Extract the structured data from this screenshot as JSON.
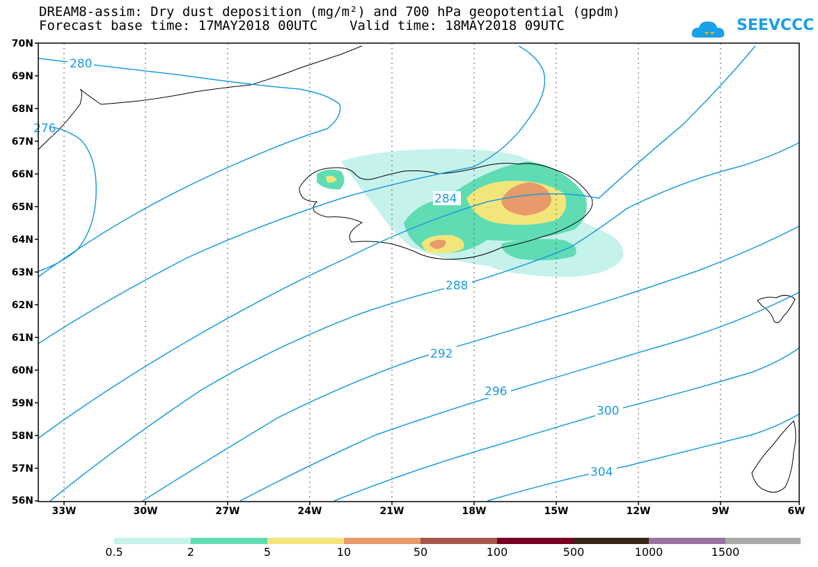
{
  "title_line1": "DREAM8-assim: Dry dust deposition (mg/m²) and 700 hPa geopotential (gpdm)",
  "title_line2": "Forecast base time: 17MAY2018 00UTC    Valid time: 18MAY2018 09UTC",
  "logo_text": "SEEVCCC",
  "lat_labels": [
    "70N",
    "69N",
    "68N",
    "67N",
    "66N",
    "65N",
    "64N",
    "63N",
    "62N",
    "61N",
    "60N",
    "59N",
    "58N",
    "57N",
    "56N"
  ],
  "lon_labels": [
    "33W",
    "30W",
    "27W",
    "24W",
    "21W",
    "18W",
    "15W",
    "12W",
    "9W",
    "6W"
  ],
  "contour_labels": [
    "280",
    "276",
    "284",
    "288",
    "292",
    "296",
    "300",
    "304"
  ],
  "colorbar": {
    "labels": [
      "0.5",
      "2",
      "5",
      "10",
      "50",
      "100",
      "500",
      "1000",
      "1500"
    ],
    "colors": [
      "#c6f2ec",
      "#5fdcb3",
      "#f2e67a",
      "#e89a6a",
      "#a8564a",
      "#7a0024",
      "#3a2418",
      "#9a72a2",
      "#aaaaaa"
    ]
  },
  "colors": {
    "contour": "#1a9be0",
    "land": "#ffffff"
  }
}
